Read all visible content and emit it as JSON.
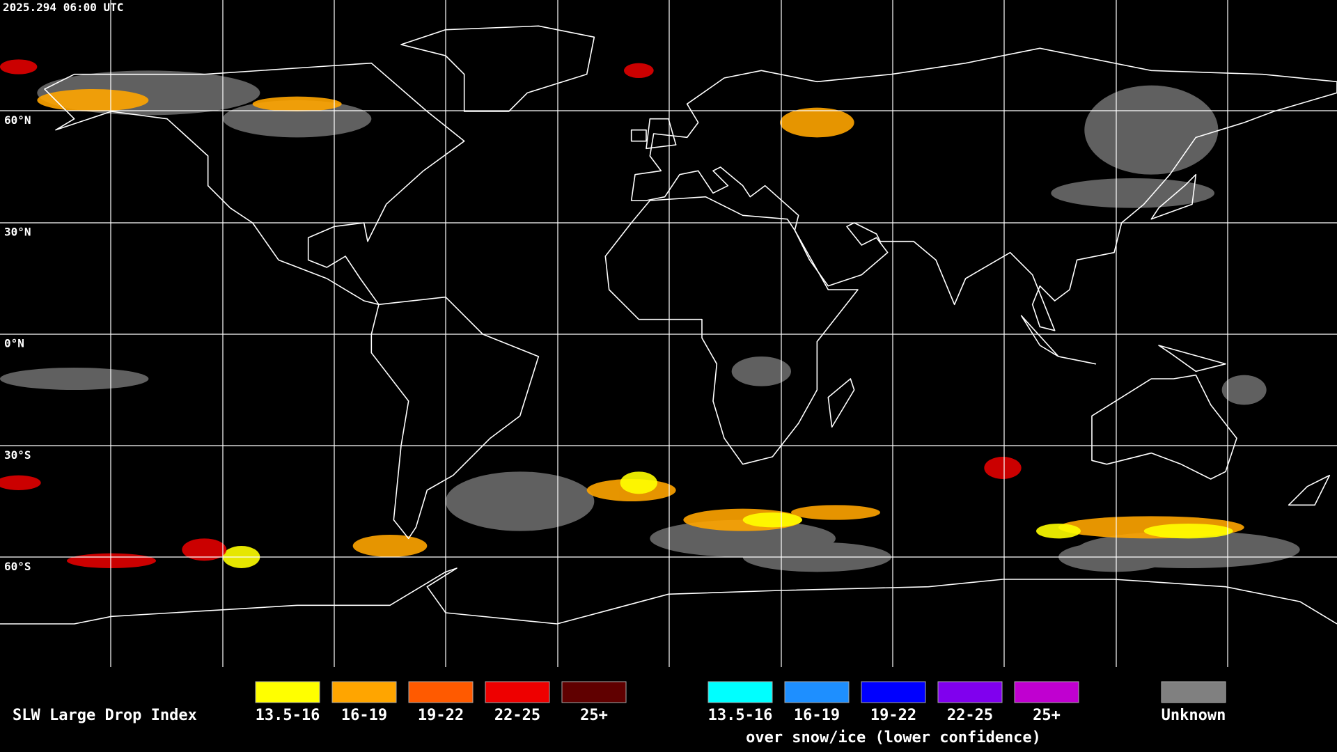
{
  "header": {
    "timestamp": "2025.294 06:00 UTC"
  },
  "map": {
    "latitude_labels": [
      "60°N",
      "30°N",
      "0°N",
      "30°S",
      "60°S"
    ]
  },
  "legend": {
    "title": "SLW Large Drop Index",
    "groups": [
      {
        "items": [
          {
            "label": "13.5-16",
            "color": "#ffff00"
          },
          {
            "label": "16-19",
            "color": "#ffa500"
          },
          {
            "label": "19-22",
            "color": "#ff5a00"
          },
          {
            "label": "22-25",
            "color": "#ee0000"
          },
          {
            "label": "25+",
            "color": "#600000"
          }
        ]
      },
      {
        "items": [
          {
            "label": "13.5-16",
            "color": "#00ffff"
          },
          {
            "label": "16-19",
            "color": "#1e8fff"
          },
          {
            "label": "19-22",
            "color": "#0000ff"
          },
          {
            "label": "22-25",
            "color": "#8000ee"
          },
          {
            "label": "25+",
            "color": "#c000d0"
          }
        ],
        "caption": "over snow/ice (lower confidence)"
      }
    ],
    "unknown": {
      "label": "Unknown",
      "color": "#808080"
    }
  }
}
